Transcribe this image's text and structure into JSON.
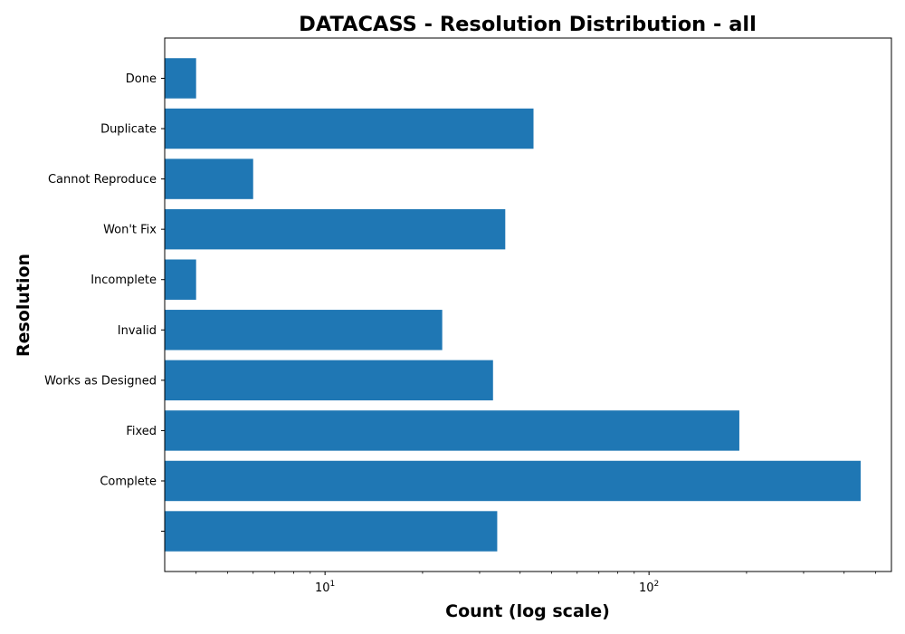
{
  "chart_data": {
    "type": "bar",
    "orientation": "horizontal",
    "title": "DATACASS - Resolution Distribution - all",
    "xlabel": "Count (log scale)",
    "ylabel": "Resolution",
    "x_scale": "log",
    "xlim": [
      3.2,
      560
    ],
    "x_ticks": [
      {
        "value": 10,
        "label": "10",
        "exp": "1"
      },
      {
        "value": 100,
        "label": "10",
        "exp": "2"
      }
    ],
    "categories": [
      "",
      "Complete",
      "Fixed",
      "Works as Designed",
      "Invalid",
      "Incomplete",
      "Won't Fix",
      "Cannot Reproduce",
      "Duplicate",
      "Done"
    ],
    "values": [
      34,
      450,
      190,
      33,
      23,
      4,
      36,
      6,
      44,
      4
    ],
    "bar_color": "#1f77b4",
    "grid": false,
    "legend": "none"
  }
}
